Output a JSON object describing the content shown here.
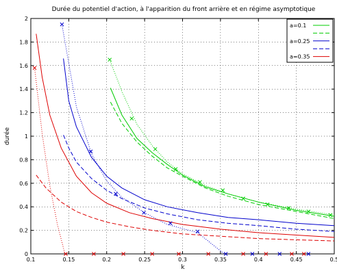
{
  "chart_data": {
    "type": "line",
    "title": "Durée du potentiel d'action, à l'apparition du front arrière et en régime asymptotique",
    "xlabel": "k",
    "ylabel": "durée",
    "xlim": [
      0.1,
      0.5
    ],
    "ylim": [
      0,
      2
    ],
    "x_ticks": [
      "0.1",
      "0.15",
      "0.2",
      "0.25",
      "0.3",
      "0.35",
      "0.4",
      "0.45",
      "0.5"
    ],
    "y_ticks": [
      "0",
      "0.2",
      "0.4",
      "0.6",
      "0.8",
      "1",
      "1.2",
      "1.4",
      "1.6",
      "1.8",
      "2"
    ],
    "grid": "dotted",
    "legend_position": "top-right",
    "legend": [
      {
        "label": "a=0.1",
        "color": "#00cc00",
        "style": "solid"
      },
      {
        "label": "",
        "color": "#00cc00",
        "style": "dashed"
      },
      {
        "label": "a=0.25",
        "color": "#0000cc",
        "style": "solid"
      },
      {
        "label": "",
        "color": "#0000cc",
        "style": "dashed"
      },
      {
        "label": "a=0.35",
        "color": "#dd0000",
        "style": "solid"
      }
    ],
    "series": [
      {
        "name": "a=0.1",
        "color": "#00cc00",
        "style": "solid",
        "x": [
          0.205,
          0.22,
          0.24,
          0.26,
          0.28,
          0.3,
          0.33,
          0.36,
          0.4,
          0.45,
          0.5
        ],
        "y": [
          1.41,
          1.18,
          0.98,
          0.86,
          0.76,
          0.67,
          0.57,
          0.51,
          0.44,
          0.37,
          0.32
        ]
      },
      {
        "name": "a=0.1",
        "color": "#00cc00",
        "style": "dashed",
        "x": [
          0.205,
          0.22,
          0.24,
          0.26,
          0.28,
          0.3,
          0.33,
          0.36,
          0.4,
          0.45,
          0.5
        ],
        "y": [
          1.29,
          1.11,
          0.95,
          0.83,
          0.73,
          0.66,
          0.56,
          0.49,
          0.42,
          0.36,
          0.3
        ]
      },
      {
        "name": "a=0.1",
        "color": "#00cc00",
        "style": "dotted",
        "x": [
          0.204,
          0.22,
          0.24,
          0.26,
          0.28,
          0.3,
          0.33,
          0.36,
          0.4,
          0.45,
          0.5
        ],
        "y": [
          1.65,
          1.38,
          1.1,
          0.92,
          0.78,
          0.68,
          0.58,
          0.51,
          0.44,
          0.38,
          0.33
        ]
      },
      {
        "name": "a=0.25",
        "color": "#0000cc",
        "style": "solid",
        "x": [
          0.143,
          0.15,
          0.16,
          0.18,
          0.2,
          0.22,
          0.25,
          0.28,
          0.32,
          0.36,
          0.4,
          0.45,
          0.5
        ],
        "y": [
          1.66,
          1.3,
          1.08,
          0.82,
          0.66,
          0.56,
          0.46,
          0.4,
          0.35,
          0.31,
          0.29,
          0.26,
          0.24
        ]
      },
      {
        "name": "a=0.25",
        "color": "#0000cc",
        "style": "dashed",
        "x": [
          0.143,
          0.15,
          0.16,
          0.18,
          0.2,
          0.22,
          0.25,
          0.28,
          0.32,
          0.36,
          0.4,
          0.45,
          0.5
        ],
        "y": [
          1.01,
          0.9,
          0.78,
          0.64,
          0.54,
          0.47,
          0.39,
          0.34,
          0.29,
          0.26,
          0.24,
          0.21,
          0.19
        ]
      },
      {
        "name": "a=0.25",
        "color": "#0000cc",
        "style": "dotted",
        "x": [
          0.141,
          0.16,
          0.18,
          0.2,
          0.22,
          0.25,
          0.28,
          0.32,
          0.355
        ],
        "y": [
          1.95,
          1.25,
          0.85,
          0.62,
          0.48,
          0.35,
          0.25,
          0.18,
          0.0
        ]
      },
      {
        "name": "a=0.35",
        "color": "#dd0000",
        "style": "solid",
        "x": [
          0.107,
          0.115,
          0.125,
          0.14,
          0.16,
          0.18,
          0.2,
          0.23,
          0.26,
          0.3,
          0.35,
          0.4,
          0.45,
          0.5
        ],
        "y": [
          1.87,
          1.5,
          1.18,
          0.9,
          0.66,
          0.52,
          0.43,
          0.35,
          0.3,
          0.25,
          0.21,
          0.18,
          0.16,
          0.14
        ]
      },
      {
        "name": "a=0.35",
        "color": "#dd0000",
        "style": "dashed",
        "x": [
          0.107,
          0.12,
          0.14,
          0.16,
          0.18,
          0.2,
          0.23,
          0.26,
          0.3,
          0.35,
          0.4,
          0.45,
          0.5
        ],
        "y": [
          0.67,
          0.56,
          0.44,
          0.36,
          0.31,
          0.27,
          0.23,
          0.2,
          0.17,
          0.15,
          0.13,
          0.12,
          0.11
        ]
      },
      {
        "name": "a=0.35",
        "color": "#dd0000",
        "style": "dotted",
        "x": [
          0.105,
          0.115,
          0.125,
          0.135,
          0.145
        ],
        "y": [
          1.58,
          1.02,
          0.58,
          0.25,
          0.0
        ]
      }
    ],
    "markers": [
      {
        "color": "#00cc00",
        "x": [
          0.204,
          0.233,
          0.264,
          0.291,
          0.323,
          0.353,
          0.38,
          0.412,
          0.44,
          0.466,
          0.495
        ],
        "y": [
          1.65,
          1.15,
          0.89,
          0.72,
          0.61,
          0.54,
          0.47,
          0.42,
          0.39,
          0.36,
          0.33
        ]
      },
      {
        "color": "#0000cc",
        "x": [
          0.141,
          0.179,
          0.212,
          0.249,
          0.284,
          0.32,
          0.357,
          0.392,
          0.428,
          0.466
        ],
        "y": [
          1.95,
          0.87,
          0.51,
          0.35,
          0.26,
          0.19,
          0.0,
          0.0,
          0.0,
          0.0
        ]
      },
      {
        "color": "#dd0000",
        "x": [
          0.105,
          0.146,
          0.183,
          0.222,
          0.26,
          0.295,
          0.334,
          0.38,
          0.41,
          0.444,
          0.46
        ],
        "y": [
          1.58,
          0.0,
          0.0,
          0.0,
          0.0,
          0.0,
          0.0,
          0.0,
          0.0,
          0.0,
          0.0
        ]
      }
    ]
  }
}
